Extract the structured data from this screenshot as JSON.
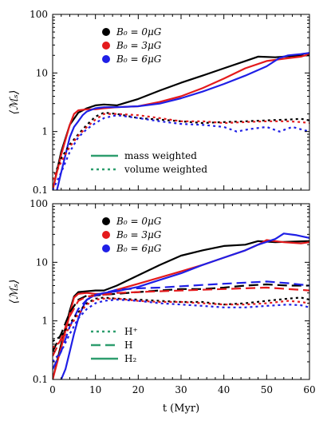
{
  "chart_data": [
    {
      "type": "line",
      "ylabel": "⟨ℳₛ⟩",
      "yscale": "log",
      "xlim": [
        0,
        60
      ],
      "ylim": [
        0.1,
        100
      ],
      "xticks": [
        0,
        10,
        20,
        30,
        40,
        50,
        60
      ],
      "yticks": [
        0.1,
        1,
        10,
        100
      ],
      "ytick_labels": [
        "0.1",
        "1",
        "10",
        "100"
      ],
      "xtick_labels": [
        "",
        "",
        "",
        "",
        "",
        "",
        ""
      ],
      "marker_legend": {
        "placement": "top-left",
        "entries": [
          {
            "label": "B₀ = 0μG",
            "color": "#000000"
          },
          {
            "label": "B₀ = 3μG",
            "color": "#e41a1c"
          },
          {
            "label": "B₀ = 6μG",
            "color": "#1f1fe6"
          }
        ]
      },
      "style_legend": {
        "placement": "bottom-left",
        "color": "#2e9e6e",
        "entries": [
          {
            "label": "mass weighted",
            "dash": "solid"
          },
          {
            "label": "volume weighted",
            "dash": "dotted"
          }
        ]
      },
      "series": [
        {
          "color": "#000000",
          "dash": "solid",
          "x": [
            0,
            2,
            4,
            6,
            8,
            10,
            12,
            15,
            20,
            25,
            30,
            35,
            40,
            45,
            48,
            52,
            56,
            60
          ],
          "y": [
            0.1,
            0.45,
            1.3,
            2.1,
            2.5,
            2.8,
            2.9,
            2.8,
            3.6,
            5.0,
            6.8,
            9.0,
            12.0,
            16.0,
            19.0,
            18.5,
            19.5,
            20.0
          ]
        },
        {
          "color": "#e41a1c",
          "dash": "solid",
          "x": [
            0,
            2,
            4,
            5,
            6,
            8,
            10,
            12,
            15,
            20,
            25,
            30,
            35,
            40,
            45,
            50,
            54,
            58,
            60
          ],
          "y": [
            0.1,
            0.4,
            1.3,
            2.0,
            2.3,
            2.4,
            2.4,
            2.5,
            2.6,
            2.7,
            3.2,
            4.0,
            5.5,
            8.0,
            12.0,
            16.0,
            17.5,
            19.0,
            21.0
          ]
        },
        {
          "color": "#1f1fe6",
          "dash": "solid",
          "x": [
            0,
            1,
            2,
            3,
            4,
            5,
            6,
            7,
            8,
            10,
            12,
            15,
            20,
            25,
            30,
            35,
            40,
            45,
            50,
            53,
            55,
            58,
            60
          ],
          "y": [
            0.09,
            0.1,
            0.2,
            0.4,
            0.8,
            1.2,
            1.5,
            1.9,
            2.2,
            2.5,
            2.6,
            2.6,
            2.7,
            3.0,
            3.7,
            4.8,
            6.5,
            9.0,
            13.0,
            18.0,
            20.0,
            21.0,
            22.0
          ]
        },
        {
          "color": "#000000",
          "dash": "dotted",
          "x": [
            0,
            2,
            4,
            6,
            8,
            10,
            12,
            15,
            20,
            25,
            30,
            35,
            40,
            45,
            50,
            55,
            58,
            60
          ],
          "y": [
            0.15,
            0.35,
            0.6,
            0.9,
            1.3,
            1.8,
            2.1,
            2.0,
            1.7,
            1.6,
            1.5,
            1.4,
            1.45,
            1.5,
            1.55,
            1.6,
            1.65,
            1.55
          ]
        },
        {
          "color": "#e41a1c",
          "dash": "dotted",
          "x": [
            0,
            2,
            4,
            6,
            8,
            10,
            12,
            15,
            20,
            25,
            30,
            35,
            40,
            45,
            50,
            55,
            58,
            60
          ],
          "y": [
            0.15,
            0.3,
            0.55,
            0.85,
            1.2,
            1.6,
            2.0,
            2.0,
            1.9,
            1.7,
            1.5,
            1.5,
            1.4,
            1.45,
            1.5,
            1.5,
            1.45,
            1.4
          ]
        },
        {
          "color": "#1f1fe6",
          "dash": "dotted",
          "x": [
            0,
            2,
            4,
            6,
            8,
            10,
            12,
            15,
            20,
            25,
            30,
            35,
            40,
            43,
            46,
            50,
            53,
            56,
            60
          ],
          "y": [
            0.1,
            0.2,
            0.45,
            0.8,
            1.1,
            1.4,
            1.7,
            1.9,
            1.7,
            1.5,
            1.35,
            1.3,
            1.2,
            1.0,
            1.1,
            1.2,
            1.0,
            1.2,
            1.0
          ]
        }
      ]
    },
    {
      "type": "line",
      "ylabel": "⟨ℳₛ⟩",
      "xlabel": "t (Myr)",
      "yscale": "log",
      "xlim": [
        0,
        60
      ],
      "ylim": [
        0.1,
        100
      ],
      "xticks": [
        0,
        10,
        20,
        30,
        40,
        50,
        60
      ],
      "yticks": [
        0.1,
        1,
        10,
        100
      ],
      "ytick_labels": [
        "0.1",
        "1",
        "10",
        "100"
      ],
      "xtick_labels": [
        "0",
        "10",
        "20",
        "30",
        "40",
        "50",
        "60"
      ],
      "marker_legend": {
        "placement": "top-left",
        "entries": [
          {
            "label": "B₀ = 0μG",
            "color": "#000000"
          },
          {
            "label": "B₀ = 3μG",
            "color": "#e41a1c"
          },
          {
            "label": "B₀ = 6μG",
            "color": "#1f1fe6"
          }
        ]
      },
      "style_legend": {
        "placement": "bottom-left",
        "color": "#2e9e6e",
        "entries": [
          {
            "label": "H⁺",
            "dash": "dotted"
          },
          {
            "label": "H",
            "dash": "dashed"
          },
          {
            "label": "H₂",
            "dash": "solid"
          }
        ]
      },
      "series": [
        {
          "color": "#000000",
          "dash": "solid",
          "x": [
            0,
            2,
            4,
            5,
            6,
            8,
            10,
            12,
            15,
            20,
            25,
            30,
            35,
            40,
            45,
            48,
            52,
            56,
            60
          ],
          "y": [
            0.1,
            0.4,
            1.5,
            2.6,
            3.1,
            3.2,
            3.3,
            3.3,
            4.0,
            6.0,
            9.0,
            13.0,
            16.0,
            19.0,
            20.0,
            23.0,
            22.0,
            22.5,
            23.0
          ]
        },
        {
          "color": "#e41a1c",
          "dash": "solid",
          "x": [
            0,
            2,
            4,
            5,
            6,
            8,
            10,
            12,
            15,
            20,
            25,
            30,
            35,
            40,
            45,
            48,
            50,
            54,
            58,
            60
          ],
          "y": [
            0.1,
            0.35,
            1.3,
            2.5,
            2.9,
            3.0,
            2.9,
            2.9,
            3.4,
            4.3,
            5.5,
            7.0,
            9.0,
            12.0,
            16.0,
            20.0,
            24.0,
            22.0,
            21.0,
            22.0
          ]
        },
        {
          "color": "#1f1fe6",
          "dash": "solid",
          "x": [
            0,
            2,
            3,
            4,
            5,
            6,
            7,
            8,
            10,
            12,
            15,
            20,
            25,
            30,
            35,
            40,
            45,
            48,
            52,
            54,
            57,
            60
          ],
          "y": [
            0.09,
            0.1,
            0.15,
            0.3,
            0.6,
            1.1,
            1.7,
            2.3,
            2.8,
            3.0,
            3.2,
            3.8,
            5.0,
            6.5,
            9.0,
            12.0,
            16.0,
            20.0,
            25.0,
            31.0,
            29.0,
            26.0
          ]
        },
        {
          "color": "#000000",
          "dash": "dashed",
          "x": [
            0,
            2,
            4,
            6,
            8,
            10,
            12,
            15,
            20,
            25,
            30,
            35,
            40,
            45,
            50,
            55,
            60
          ],
          "y": [
            0.3,
            0.6,
            1.4,
            2.3,
            2.7,
            2.7,
            2.8,
            2.9,
            3.1,
            3.3,
            3.5,
            3.5,
            3.7,
            4.0,
            4.2,
            4.0,
            4.0
          ]
        },
        {
          "color": "#e41a1c",
          "dash": "dashed",
          "x": [
            0,
            2,
            4,
            6,
            8,
            10,
            12,
            15,
            20,
            25,
            30,
            35,
            40,
            45,
            50,
            55,
            60
          ],
          "y": [
            0.25,
            0.5,
            1.2,
            2.2,
            2.6,
            2.7,
            2.8,
            3.0,
            3.1,
            3.2,
            3.3,
            3.4,
            3.5,
            3.6,
            3.7,
            3.5,
            3.3
          ]
        },
        {
          "color": "#1f1fe6",
          "dash": "dashed",
          "x": [
            0,
            2,
            4,
            6,
            8,
            10,
            12,
            15,
            20,
            25,
            30,
            35,
            40,
            45,
            50,
            55,
            60
          ],
          "y": [
            0.15,
            0.3,
            0.8,
            1.6,
            2.3,
            2.7,
            3.0,
            3.4,
            3.6,
            3.7,
            3.9,
            4.1,
            4.3,
            4.5,
            4.7,
            4.4,
            4.0
          ]
        },
        {
          "color": "#000000",
          "dash": "dotted",
          "x": [
            0,
            2,
            4,
            6,
            8,
            10,
            12,
            15,
            20,
            25,
            30,
            35,
            40,
            45,
            50,
            55,
            58,
            60
          ],
          "y": [
            0.45,
            0.55,
            0.9,
            1.4,
            2.0,
            2.4,
            2.5,
            2.4,
            2.3,
            2.2,
            2.1,
            2.1,
            1.9,
            2.0,
            2.2,
            2.4,
            2.5,
            2.3
          ]
        },
        {
          "color": "#e41a1c",
          "dash": "dotted",
          "x": [
            0,
            2,
            4,
            6,
            8,
            10,
            12,
            15,
            20,
            25,
            30,
            35,
            40,
            45,
            50,
            55,
            58,
            60
          ],
          "y": [
            0.35,
            0.45,
            0.8,
            1.3,
            1.9,
            2.3,
            2.4,
            2.4,
            2.2,
            2.1,
            2.1,
            2.0,
            1.9,
            1.9,
            2.0,
            2.2,
            2.1,
            2.0
          ]
        },
        {
          "color": "#1f1fe6",
          "dash": "dotted",
          "x": [
            0,
            2,
            4,
            6,
            8,
            10,
            12,
            15,
            20,
            25,
            30,
            35,
            40,
            45,
            50,
            55,
            58,
            60
          ],
          "y": [
            0.2,
            0.3,
            0.6,
            1.1,
            1.6,
            2.0,
            2.2,
            2.3,
            2.2,
            2.0,
            1.9,
            1.8,
            1.7,
            1.7,
            1.8,
            1.9,
            1.85,
            1.7
          ]
        }
      ]
    }
  ]
}
